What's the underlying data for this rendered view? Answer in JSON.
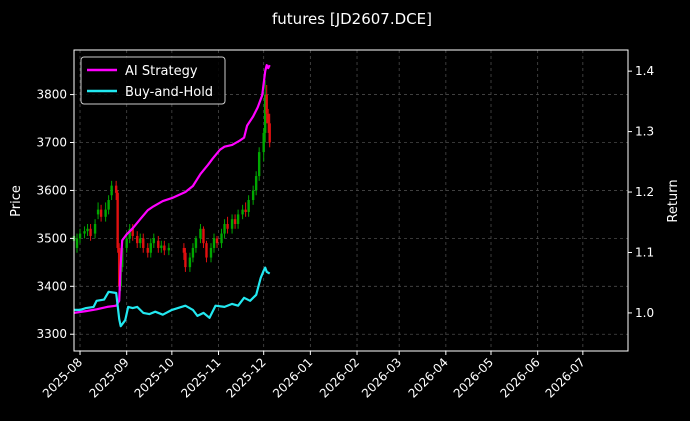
{
  "chart_data": {
    "type": "line",
    "title": "futures [JD2607.DCE]",
    "ylabel_left": "Price",
    "ylabel_right": "Return",
    "xlim": [
      "2025-07-28",
      "2026-07-31"
    ],
    "ylim_left": [
      3265,
      3893
    ],
    "ylim_right": [
      0.937,
      1.435
    ],
    "x_ticks": [
      "2025-08",
      "2025-09",
      "2025-10",
      "2025-11",
      "2025-12",
      "2026-01",
      "2026-02",
      "2026-03",
      "2026-04",
      "2026-05",
      "2026-06",
      "2026-07"
    ],
    "x_tick_dates": [
      "2025-08-01",
      "2025-09-01",
      "2025-10-01",
      "2025-11-01",
      "2025-12-01",
      "2026-01-01",
      "2026-02-01",
      "2026-03-01",
      "2026-04-01",
      "2026-05-01",
      "2026-06-01",
      "2026-07-01"
    ],
    "y_ticks_left": [
      3300,
      3400,
      3500,
      3600,
      3700,
      3800
    ],
    "y_ticks_right": [
      1.0,
      1.1,
      1.2,
      1.3,
      1.4
    ],
    "grid": true,
    "legend_position": "top-left",
    "colors": {
      "background": "#000000",
      "text": "#ffffff",
      "grid": "#4a4a4a",
      "up": "#00a800",
      "down": "#e01010",
      "ai_strategy": "#ff00ff",
      "buy_and_hold": "#22e8f0"
    },
    "series": [
      {
        "name": "AI Strategy",
        "axis": "right",
        "points": [
          [
            "2025-07-28",
            1.0
          ],
          [
            "2025-08-05",
            1.003
          ],
          [
            "2025-08-12",
            1.006
          ],
          [
            "2025-08-19",
            1.01
          ],
          [
            "2025-08-25",
            1.012
          ],
          [
            "2025-08-27",
            1.02
          ],
          [
            "2025-08-28",
            1.08
          ],
          [
            "2025-08-29",
            1.12
          ],
          [
            "2025-09-01",
            1.13
          ],
          [
            "2025-09-05",
            1.14
          ],
          [
            "2025-09-10",
            1.155
          ],
          [
            "2025-09-15",
            1.17
          ],
          [
            "2025-09-18",
            1.175
          ],
          [
            "2025-09-25",
            1.185
          ],
          [
            "2025-10-01",
            1.19
          ],
          [
            "2025-10-10",
            1.2
          ],
          [
            "2025-10-15",
            1.21
          ],
          [
            "2025-10-20",
            1.23
          ],
          [
            "2025-10-25",
            1.245
          ],
          [
            "2025-10-28",
            1.255
          ],
          [
            "2025-11-02",
            1.27
          ],
          [
            "2025-11-05",
            1.275
          ],
          [
            "2025-11-10",
            1.278
          ],
          [
            "2025-11-15",
            1.285
          ],
          [
            "2025-11-18",
            1.29
          ],
          [
            "2025-11-20",
            1.31
          ],
          [
            "2025-11-24",
            1.325
          ],
          [
            "2025-11-27",
            1.34
          ],
          [
            "2025-11-30",
            1.36
          ],
          [
            "2025-12-01",
            1.38
          ],
          [
            "2025-12-02",
            1.4
          ],
          [
            "2025-12-03",
            1.41
          ],
          [
            "2025-12-04",
            1.405
          ],
          [
            "2025-12-05",
            1.41
          ]
        ]
      },
      {
        "name": "Buy-and-Hold",
        "axis": "right",
        "points": [
          [
            "2025-07-28",
            1.005
          ],
          [
            "2025-08-01",
            1.005
          ],
          [
            "2025-08-05",
            1.008
          ],
          [
            "2025-08-10",
            1.01
          ],
          [
            "2025-08-12",
            1.02
          ],
          [
            "2025-08-17",
            1.022
          ],
          [
            "2025-08-20",
            1.035
          ],
          [
            "2025-08-25",
            1.033
          ],
          [
            "2025-08-27",
            0.99
          ],
          [
            "2025-08-28",
            0.978
          ],
          [
            "2025-08-31",
            0.988
          ],
          [
            "2025-09-02",
            1.01
          ],
          [
            "2025-09-05",
            1.008
          ],
          [
            "2025-09-08",
            1.01
          ],
          [
            "2025-09-12",
            1.0
          ],
          [
            "2025-09-16",
            0.998
          ],
          [
            "2025-09-20",
            1.002
          ],
          [
            "2025-09-25",
            0.997
          ],
          [
            "2025-10-01",
            1.005
          ],
          [
            "2025-10-10",
            1.012
          ],
          [
            "2025-10-15",
            1.005
          ],
          [
            "2025-10-18",
            0.995
          ],
          [
            "2025-10-22",
            1.0
          ],
          [
            "2025-10-26",
            0.992
          ],
          [
            "2025-10-30",
            1.012
          ],
          [
            "2025-11-05",
            1.01
          ],
          [
            "2025-11-10",
            1.015
          ],
          [
            "2025-11-14",
            1.012
          ],
          [
            "2025-11-18",
            1.025
          ],
          [
            "2025-11-22",
            1.02
          ],
          [
            "2025-11-26",
            1.03
          ],
          [
            "2025-11-29",
            1.058
          ],
          [
            "2025-12-01",
            1.07
          ],
          [
            "2025-12-02",
            1.075
          ],
          [
            "2025-12-03",
            1.068
          ],
          [
            "2025-12-05",
            1.065
          ]
        ]
      }
    ],
    "candles": [
      [
        "2025-07-28",
        3495,
        3505,
        3515,
        3485
      ],
      [
        "2025-07-30",
        3480,
        3500,
        3510,
        3470
      ],
      [
        "2025-08-01",
        3500,
        3510,
        3520,
        3490
      ],
      [
        "2025-08-04",
        3510,
        3515,
        3525,
        3500
      ],
      [
        "2025-08-06",
        3515,
        3520,
        3530,
        3505
      ],
      [
        "2025-08-08",
        3520,
        3505,
        3530,
        3495
      ],
      [
        "2025-08-11",
        3510,
        3530,
        3540,
        3500
      ],
      [
        "2025-08-13",
        3550,
        3560,
        3575,
        3540
      ],
      [
        "2025-08-15",
        3560,
        3545,
        3570,
        3535
      ],
      [
        "2025-08-18",
        3545,
        3560,
        3575,
        3535
      ],
      [
        "2025-08-20",
        3560,
        3580,
        3590,
        3550
      ],
      [
        "2025-08-22",
        3590,
        3610,
        3620,
        3580
      ],
      [
        "2025-08-25",
        3610,
        3595,
        3620,
        3580
      ],
      [
        "2025-08-26",
        3595,
        3480,
        3600,
        3470
      ],
      [
        "2025-08-27",
        3480,
        3400,
        3490,
        3380
      ],
      [
        "2025-08-28",
        3400,
        3440,
        3460,
        3390
      ],
      [
        "2025-08-29",
        3440,
        3480,
        3490,
        3430
      ],
      [
        "2025-09-01",
        3480,
        3500,
        3510,
        3470
      ],
      [
        "2025-09-03",
        3500,
        3520,
        3530,
        3490
      ],
      [
        "2025-09-05",
        3520,
        3505,
        3530,
        3495
      ],
      [
        "2025-09-08",
        3505,
        3490,
        3515,
        3480
      ],
      [
        "2025-09-10",
        3490,
        3500,
        3510,
        3480
      ],
      [
        "2025-09-12",
        3500,
        3480,
        3510,
        3470
      ],
      [
        "2025-09-15",
        3480,
        3470,
        3490,
        3460
      ],
      [
        "2025-09-17",
        3470,
        3490,
        3500,
        3460
      ],
      [
        "2025-09-19",
        3490,
        3500,
        3510,
        3480
      ],
      [
        "2025-09-22",
        3495,
        3480,
        3505,
        3470
      ],
      [
        "2025-09-24",
        3480,
        3485,
        3495,
        3470
      ],
      [
        "2025-09-26",
        3485,
        3475,
        3495,
        3465
      ],
      [
        "2025-09-29",
        3475,
        3480,
        3490,
        3465
      ],
      [
        "2025-10-09",
        3480,
        3470,
        3490,
        3455
      ],
      [
        "2025-10-10",
        3470,
        3440,
        3480,
        3430
      ],
      [
        "2025-10-13",
        3440,
        3460,
        3470,
        3430
      ],
      [
        "2025-10-15",
        3460,
        3480,
        3490,
        3450
      ],
      [
        "2025-10-17",
        3480,
        3500,
        3505,
        3470
      ],
      [
        "2025-10-20",
        3500,
        3520,
        3530,
        3490
      ],
      [
        "2025-10-22",
        3520,
        3490,
        3525,
        3480
      ],
      [
        "2025-10-24",
        3490,
        3460,
        3495,
        3450
      ],
      [
        "2025-10-27",
        3460,
        3480,
        3490,
        3450
      ],
      [
        "2025-10-29",
        3480,
        3500,
        3510,
        3470
      ],
      [
        "2025-10-31",
        3500,
        3490,
        3505,
        3480
      ],
      [
        "2025-11-03",
        3490,
        3510,
        3520,
        3480
      ],
      [
        "2025-11-05",
        3510,
        3530,
        3540,
        3500
      ],
      [
        "2025-11-07",
        3530,
        3520,
        3545,
        3510
      ],
      [
        "2025-11-10",
        3520,
        3540,
        3550,
        3510
      ],
      [
        "2025-11-12",
        3540,
        3530,
        3550,
        3520
      ],
      [
        "2025-11-14",
        3530,
        3550,
        3560,
        3520
      ],
      [
        "2025-11-17",
        3550,
        3560,
        3570,
        3540
      ],
      [
        "2025-11-19",
        3560,
        3555,
        3575,
        3545
      ],
      [
        "2025-11-21",
        3555,
        3580,
        3590,
        3545
      ],
      [
        "2025-11-24",
        3580,
        3600,
        3610,
        3570
      ],
      [
        "2025-11-26",
        3600,
        3630,
        3640,
        3590
      ],
      [
        "2025-11-28",
        3630,
        3680,
        3690,
        3620
      ],
      [
        "2025-12-01",
        3680,
        3720,
        3730,
        3660
      ],
      [
        "2025-12-02",
        3720,
        3800,
        3830,
        3700
      ],
      [
        "2025-12-03",
        3800,
        3760,
        3820,
        3740
      ],
      [
        "2025-12-04",
        3760,
        3740,
        3770,
        3720
      ],
      [
        "2025-12-05",
        3740,
        3700,
        3760,
        3690
      ]
    ]
  }
}
